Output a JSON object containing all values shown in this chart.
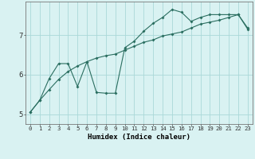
{
  "xlabel": "Humidex (Indice chaleur)",
  "x_ticks": [
    0,
    1,
    2,
    3,
    4,
    5,
    6,
    7,
    8,
    9,
    10,
    11,
    12,
    13,
    14,
    15,
    16,
    17,
    18,
    19,
    20,
    21,
    22,
    23
  ],
  "ylim": [
    4.75,
    7.85
  ],
  "y_ticks": [
    5,
    6,
    7
  ],
  "bg_color": "#d9f2f2",
  "grid_color": "#aad8d8",
  "line_color": "#2a6e60",
  "series1_y": [
    5.05,
    5.35,
    5.9,
    6.28,
    6.28,
    5.7,
    6.33,
    5.55,
    5.53,
    5.53,
    6.68,
    6.85,
    7.1,
    7.3,
    7.45,
    7.65,
    7.58,
    7.35,
    7.45,
    7.52,
    7.52,
    7.52,
    7.52,
    7.15
  ],
  "series2_y": [
    5.05,
    5.35,
    5.62,
    5.88,
    6.08,
    6.22,
    6.33,
    6.42,
    6.48,
    6.52,
    6.62,
    6.72,
    6.82,
    6.88,
    6.98,
    7.03,
    7.08,
    7.18,
    7.28,
    7.33,
    7.38,
    7.45,
    7.52,
    7.18
  ],
  "xlabel_fontsize": 6.5,
  "tick_fontsize_x": 5.2,
  "tick_fontsize_y": 6.5
}
